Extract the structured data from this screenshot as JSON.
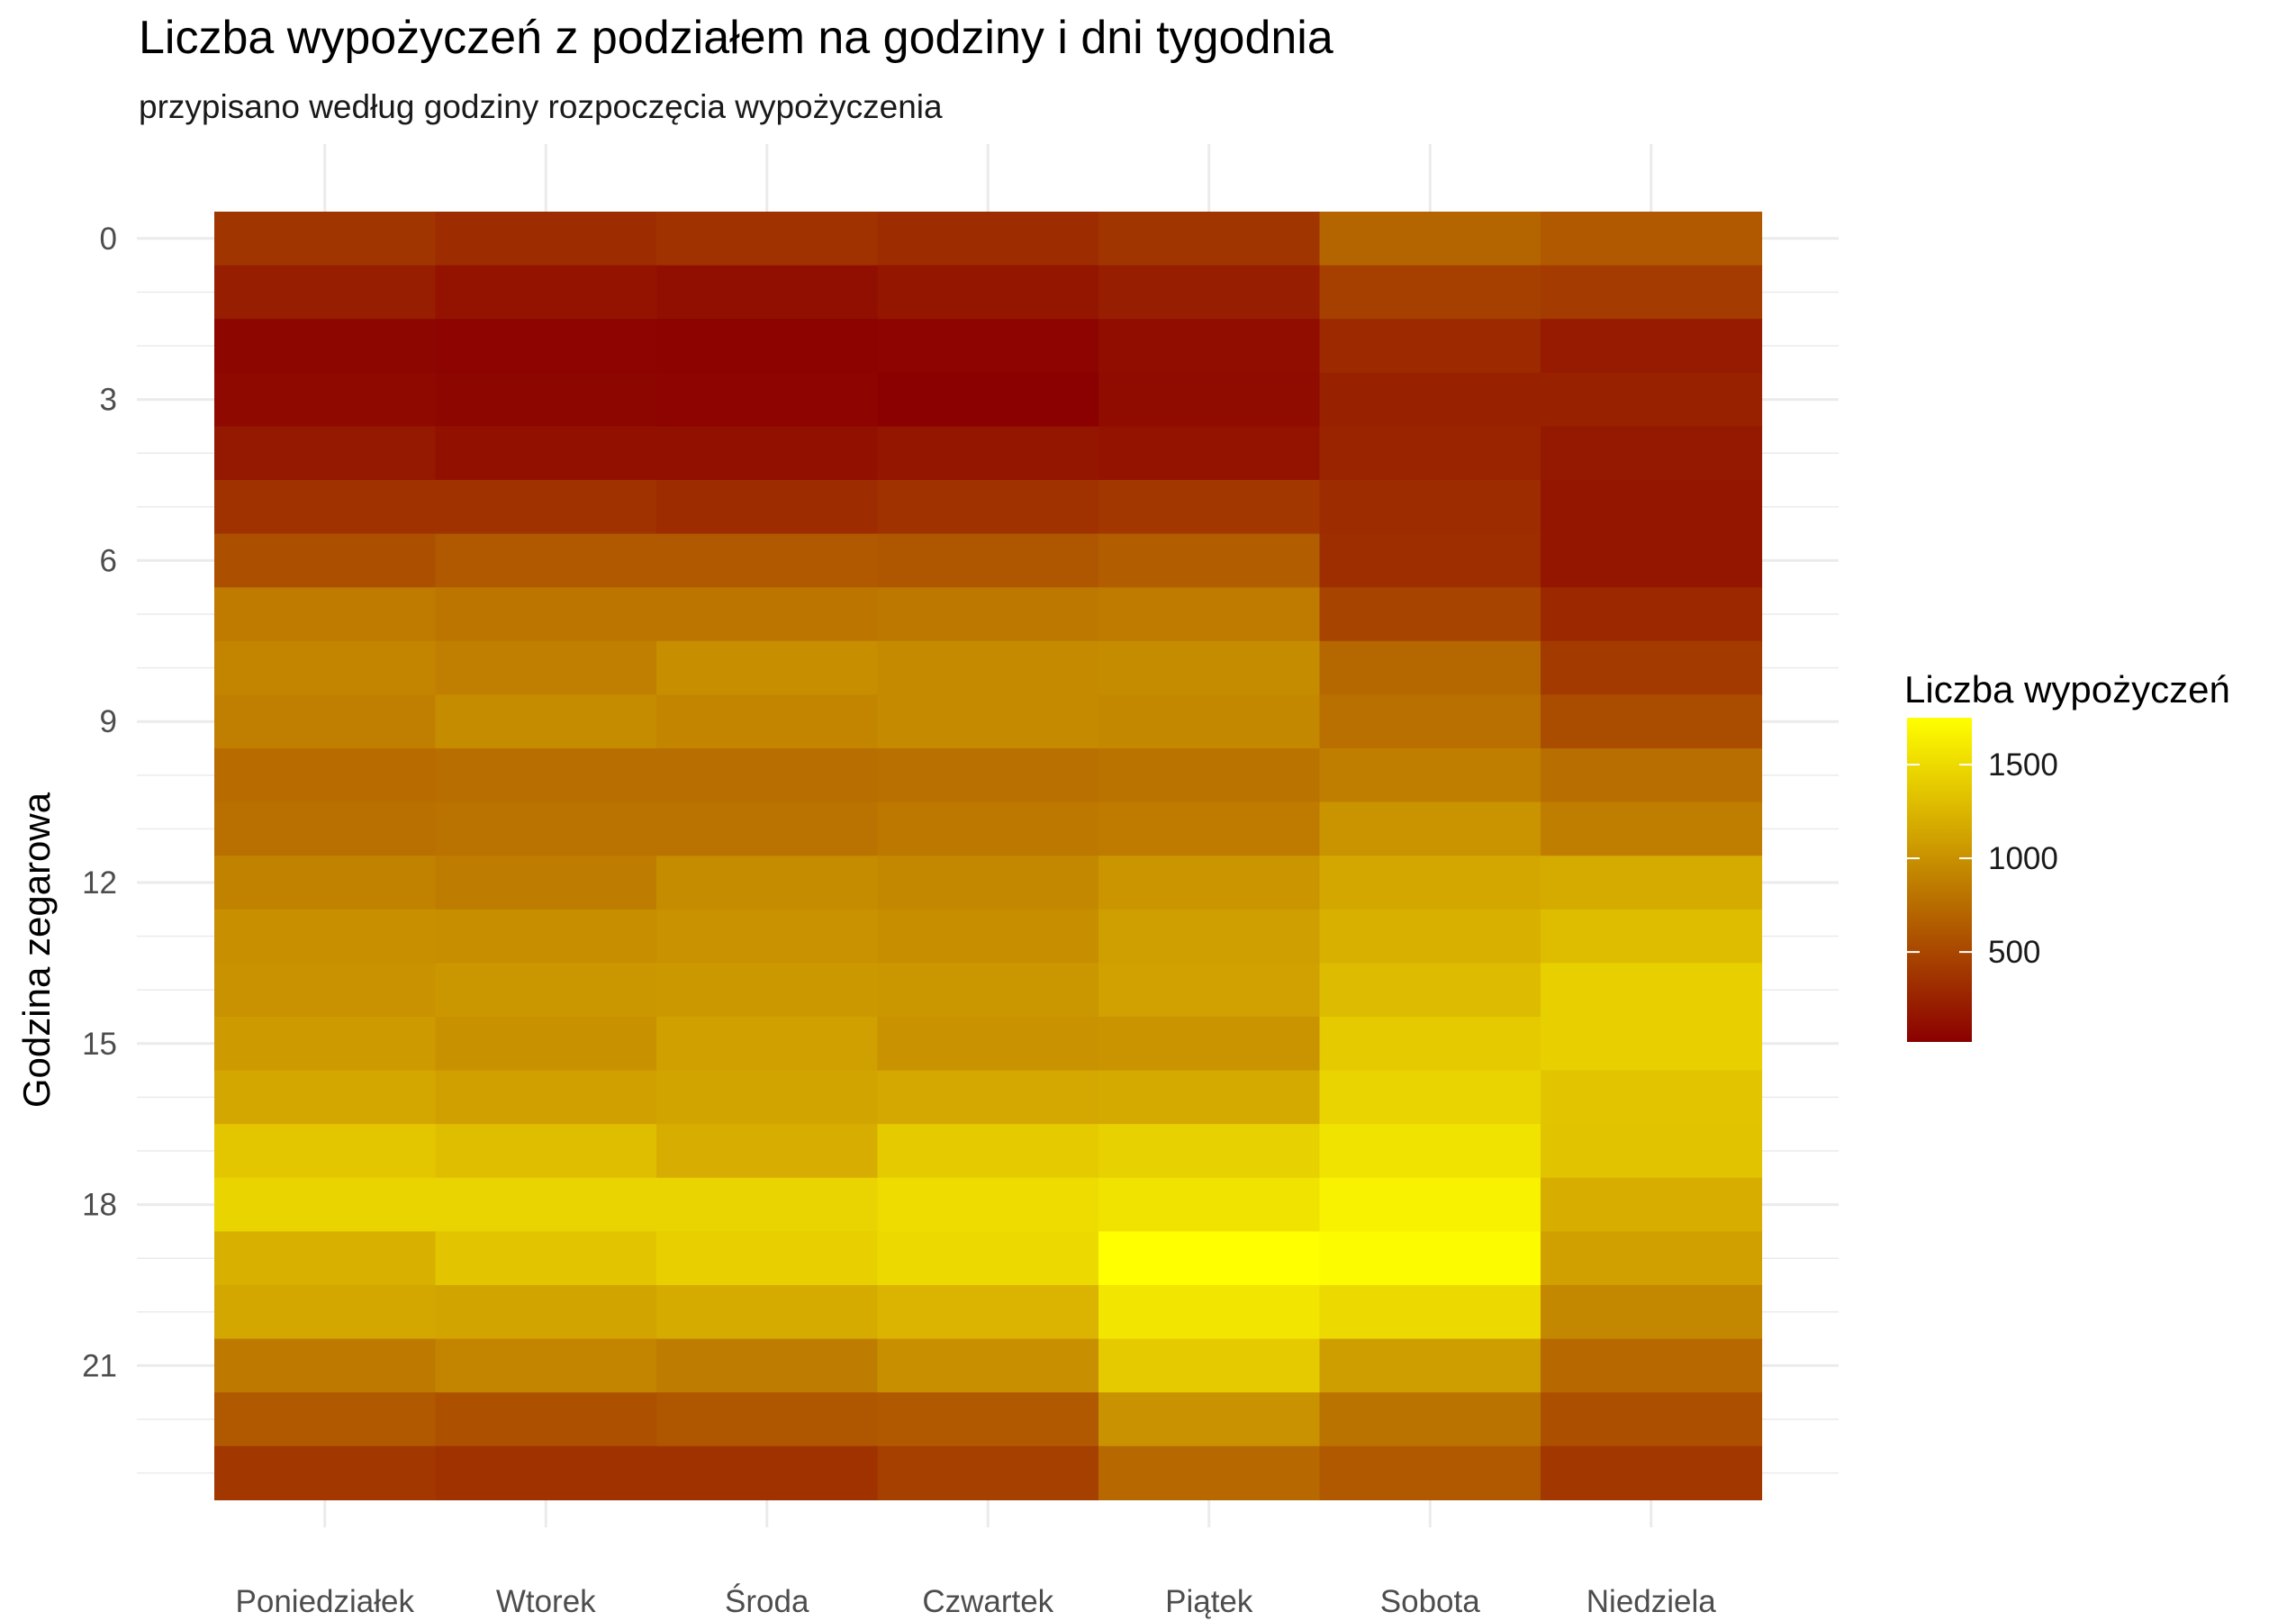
{
  "chart_data": {
    "type": "heatmap",
    "title": "Liczba wypożyczeń z podziałem na godziny i dni tygodnia",
    "subtitle": "przypisano według godziny rozpoczęcia wypożyczenia",
    "xlabel": "",
    "ylabel": "Godzina zegarowa",
    "x_categories": [
      "Poniedziałek",
      "Wtorek",
      "Środa",
      "Czwartek",
      "Piątek",
      "Sobota",
      "Niedziela"
    ],
    "y_values": [
      0,
      1,
      2,
      3,
      4,
      5,
      6,
      7,
      8,
      9,
      10,
      11,
      12,
      13,
      14,
      15,
      16,
      17,
      18,
      19,
      20,
      21,
      22,
      23
    ],
    "y_tick_labels": [
      "0",
      "3",
      "6",
      "9",
      "12",
      "15",
      "18",
      "21"
    ],
    "y_tick_values": [
      0,
      3,
      6,
      9,
      12,
      15,
      18,
      21
    ],
    "values": [
      [
        380,
        320,
        360,
        320,
        380,
        700,
        620
      ],
      [
        220,
        150,
        120,
        160,
        220,
        450,
        420
      ],
      [
        60,
        50,
        40,
        50,
        110,
        300,
        200
      ],
      [
        80,
        60,
        50,
        20,
        100,
        240,
        240
      ],
      [
        180,
        130,
        130,
        160,
        150,
        260,
        180
      ],
      [
        360,
        360,
        320,
        360,
        400,
        320,
        170
      ],
      [
        560,
        620,
        620,
        600,
        650,
        330,
        170
      ],
      [
        850,
        820,
        820,
        830,
        850,
        480,
        290
      ],
      [
        920,
        880,
        980,
        950,
        970,
        720,
        410
      ],
      [
        880,
        970,
        920,
        950,
        940,
        780,
        540
      ],
      [
        750,
        760,
        760,
        780,
        800,
        870,
        760
      ],
      [
        780,
        790,
        790,
        830,
        850,
        1020,
        870
      ],
      [
        900,
        860,
        970,
        940,
        1030,
        1150,
        1180
      ],
      [
        990,
        980,
        1010,
        980,
        1090,
        1210,
        1300
      ],
      [
        1010,
        1040,
        1050,
        1040,
        1110,
        1290,
        1430
      ],
      [
        1060,
        1000,
        1100,
        1010,
        1020,
        1390,
        1420
      ],
      [
        1150,
        1100,
        1130,
        1160,
        1170,
        1450,
        1350
      ],
      [
        1360,
        1310,
        1190,
        1390,
        1440,
        1560,
        1340
      ],
      [
        1460,
        1450,
        1450,
        1510,
        1560,
        1660,
        1200
      ],
      [
        1220,
        1350,
        1420,
        1490,
        1750,
        1720,
        1100
      ],
      [
        1150,
        1130,
        1180,
        1240,
        1570,
        1490,
        940
      ],
      [
        840,
        920,
        860,
        990,
        1390,
        1080,
        730
      ],
      [
        620,
        570,
        600,
        620,
        1010,
        800,
        560
      ],
      [
        390,
        360,
        360,
        450,
        730,
        620,
        390
      ]
    ],
    "legend": {
      "title": "Liczba wypożyczeń",
      "min": 20,
      "max": 1750,
      "ticks": [
        500,
        1000,
        1500
      ],
      "tick_labels": [
        "500",
        "1000",
        "1500"
      ],
      "color_low": "#8b0000",
      "color_mid": "#c08000",
      "color_high": "#ffff00",
      "placement": "right"
    },
    "grid": true
  }
}
